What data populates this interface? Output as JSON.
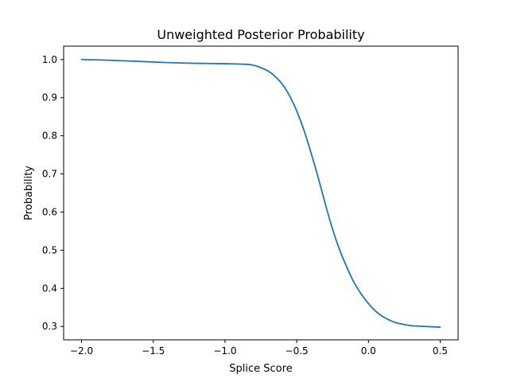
{
  "chart_data": {
    "type": "line",
    "title": "Unweighted Posterior Probability",
    "xlabel": "Splice Score",
    "ylabel": "Probability",
    "xlim": [
      -2.125,
      0.625
    ],
    "ylim": [
      0.265,
      1.035
    ],
    "xticks": [
      -2.0,
      -1.5,
      -1.0,
      -0.5,
      0.0,
      0.5
    ],
    "xtick_labels": [
      "−2.0",
      "−1.5",
      "−1.0",
      "−0.5",
      "0.0",
      "0.5"
    ],
    "yticks": [
      0.3,
      0.4,
      0.5,
      0.6,
      0.7,
      0.8,
      0.9,
      1.0
    ],
    "ytick_labels": [
      "0.3",
      "0.4",
      "0.5",
      "0.6",
      "0.7",
      "0.8",
      "0.9",
      "1.0"
    ],
    "grid": false,
    "series": [
      {
        "color": "#1f77b4",
        "x": [
          -2.0,
          -1.8,
          -1.6,
          -1.4,
          -1.2,
          -1.0,
          -0.9,
          -0.8,
          -0.7,
          -0.65,
          -0.6,
          -0.55,
          -0.5,
          -0.45,
          -0.4,
          -0.35,
          -0.3,
          -0.25,
          -0.2,
          -0.15,
          -0.1,
          -0.05,
          0.0,
          0.05,
          0.1,
          0.15,
          0.2,
          0.25,
          0.3,
          0.35,
          0.4,
          0.45,
          0.5
        ],
        "y": [
          1.0,
          0.998,
          0.995,
          0.992,
          0.99,
          0.989,
          0.988,
          0.985,
          0.97,
          0.955,
          0.935,
          0.905,
          0.865,
          0.815,
          0.755,
          0.69,
          0.62,
          0.555,
          0.5,
          0.455,
          0.415,
          0.385,
          0.36,
          0.34,
          0.326,
          0.316,
          0.309,
          0.305,
          0.302,
          0.301,
          0.3,
          0.299,
          0.298
        ]
      }
    ]
  }
}
